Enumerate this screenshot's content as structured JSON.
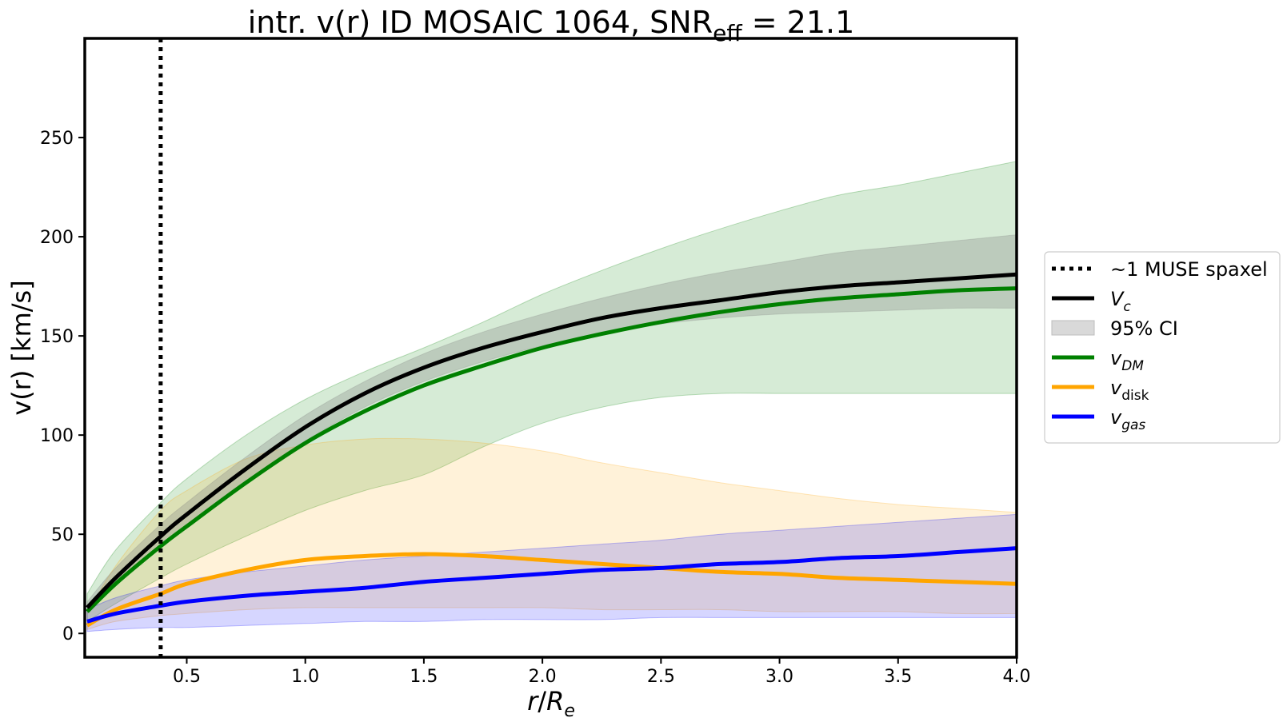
{
  "chart_data": {
    "type": "line",
    "title": {
      "prefix": "intr. v(r) ID MOSAIC 1064, SNR",
      "subscript": "eff",
      "suffix": " = 21.1"
    },
    "xlabel": {
      "var": "r",
      "slash": "/",
      "base": "R",
      "sub": "e"
    },
    "ylabel": "v(r) [km/s]",
    "xlim": [
      0.07,
      4.0
    ],
    "ylim": [
      -12,
      300
    ],
    "x_ticks": [
      0.5,
      1.0,
      1.5,
      2.0,
      2.5,
      3.0,
      3.5,
      4.0
    ],
    "x_tick_labels": [
      "0.5",
      "1.0",
      "1.5",
      "2.0",
      "2.5",
      "3.0",
      "3.5",
      "4.0"
    ],
    "y_ticks": [
      0,
      50,
      100,
      150,
      200,
      250
    ],
    "y_tick_labels": [
      "0",
      "50",
      "100",
      "150",
      "200",
      "250"
    ],
    "grid": false,
    "legend_position": "outside-right",
    "vline": {
      "x": 0.39,
      "style": "dotted",
      "color": "#000000"
    },
    "x": [
      0.08,
      0.2,
      0.39,
      0.5,
      0.75,
      1.0,
      1.25,
      1.5,
      1.75,
      2.0,
      2.25,
      2.5,
      2.75,
      3.0,
      3.25,
      3.5,
      3.75,
      4.0
    ],
    "series": [
      {
        "key": "vc",
        "color": "#000000",
        "values": [
          13,
          28,
          49,
          60,
          83,
          104,
          121,
          134,
          144,
          152,
          159,
          164,
          168,
          172,
          175,
          177,
          179,
          181
        ],
        "ci_lower": [
          10,
          24,
          44,
          55,
          77,
          97,
          114,
          127,
          137,
          145,
          151,
          156,
          159,
          161,
          162,
          163,
          164,
          164
        ],
        "ci_upper": [
          16,
          33,
          55,
          66,
          89,
          110,
          127,
          141,
          152,
          161,
          169,
          176,
          182,
          187,
          192,
          195,
          198,
          201
        ],
        "ci_fill": "#808080",
        "ci_opacity": 0.3
      },
      {
        "key": "vdm",
        "color": "#008000",
        "values": [
          11,
          25,
          44,
          54,
          76,
          96,
          112,
          125,
          135,
          144,
          151,
          157,
          162,
          166,
          169,
          171,
          173,
          174
        ],
        "ci_lower": [
          6,
          15,
          28,
          35,
          49,
          62,
          72,
          80,
          94,
          106,
          114,
          119,
          121,
          121,
          121,
          121,
          121,
          121
        ],
        "ci_upper": [
          20,
          42,
          66,
          78,
          100,
          118,
          132,
          144,
          157,
          171,
          183,
          194,
          204,
          213,
          221,
          226,
          232,
          238
        ],
        "ci_fill": "#008000",
        "ci_opacity": 0.16
      },
      {
        "key": "vdisk",
        "color": "#ffa500",
        "values": [
          4,
          12,
          20,
          25,
          32,
          37,
          39,
          40,
          39,
          37,
          35,
          33,
          31,
          30,
          28,
          27,
          26,
          25
        ],
        "ci_lower": [
          2,
          6,
          9,
          10,
          12,
          13,
          13,
          13,
          13,
          13,
          12,
          12,
          12,
          11,
          11,
          11,
          10,
          10
        ],
        "ci_upper": [
          10,
          34,
          62,
          72,
          88,
          95,
          98,
          98,
          96,
          92,
          86,
          81,
          76,
          72,
          68,
          65,
          63,
          61
        ],
        "ci_fill": "#ffa500",
        "ci_opacity": 0.15
      },
      {
        "key": "vgas",
        "color": "#0000ff",
        "values": [
          6,
          10,
          14,
          16,
          19,
          21,
          23,
          26,
          28,
          30,
          32,
          33,
          35,
          36,
          38,
          39,
          41,
          43
        ],
        "ci_lower": [
          1,
          2,
          3,
          3,
          4,
          5,
          6,
          6,
          7,
          7,
          7,
          8,
          8,
          8,
          8,
          8,
          8,
          8
        ],
        "ci_upper": [
          12,
          18,
          24,
          27,
          31,
          34,
          37,
          39,
          41,
          43,
          45,
          47,
          50,
          52,
          54,
          56,
          58,
          60
        ],
        "ci_fill": "#0000ff",
        "ci_opacity": 0.16
      }
    ],
    "legend": [
      {
        "key": "vline",
        "type": "dotted",
        "color": "#000000",
        "text": "~1 MUSE spaxel",
        "sym": "",
        "sub": "",
        "sub_italic": false,
        "italic": false
      },
      {
        "key": "vc",
        "type": "line",
        "color": "#000000",
        "text": "",
        "sym": "V",
        "sub": "c",
        "sub_italic": true,
        "italic": true
      },
      {
        "key": "ci",
        "type": "patch",
        "color": "#d9d9d9",
        "text": "95% CI",
        "sym": "",
        "sub": "",
        "sub_italic": false,
        "italic": false
      },
      {
        "key": "vdm",
        "type": "line",
        "color": "#008000",
        "text": "",
        "sym": "v",
        "sub": "DM",
        "sub_italic": true,
        "italic": true
      },
      {
        "key": "vdisk",
        "type": "line",
        "color": "#ffa500",
        "text": "",
        "sym": "v",
        "sub": "disk",
        "sub_italic": false,
        "italic": true
      },
      {
        "key": "vgas",
        "type": "line",
        "color": "#0000ff",
        "text": "",
        "sym": "v",
        "sub": "gas",
        "sub_italic": true,
        "italic": true
      }
    ]
  }
}
